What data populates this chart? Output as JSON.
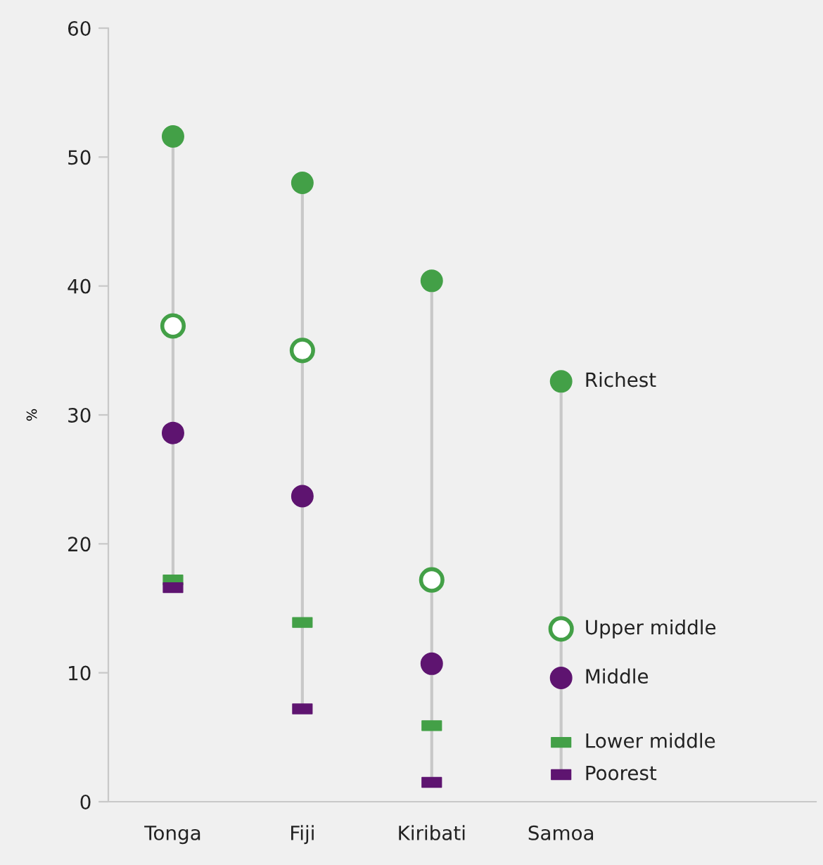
{
  "chart_data": {
    "type": "scatter",
    "ylabel": "%",
    "categories": [
      "Tonga",
      "Fiji",
      "Kiribati",
      "Samoa"
    ],
    "ylim": [
      0,
      60
    ],
    "yticks": [
      0,
      10,
      20,
      30,
      40,
      50,
      60
    ],
    "grid": false,
    "legend": "right",
    "series": [
      {
        "name": "Richest",
        "color": "#43a047",
        "marker": "circle",
        "values": [
          51.6,
          48.0,
          40.4,
          32.6
        ]
      },
      {
        "name": "Upper middle",
        "color": "#43a047",
        "marker": "circle",
        "values": [
          36.9,
          35.0,
          17.2,
          13.4
        ]
      },
      {
        "name": "Middle",
        "color": "#5e1470",
        "marker": "circle",
        "values": [
          28.6,
          23.7,
          10.7,
          9.6
        ]
      },
      {
        "name": "Lower middle",
        "color": "#43a047",
        "marker": "square",
        "values": [
          17.2,
          13.9,
          5.9,
          4.6
        ]
      },
      {
        "name": "Poorest",
        "color": "#5e1470",
        "marker": "square",
        "values": [
          16.6,
          7.2,
          1.5,
          2.1
        ]
      }
    ]
  }
}
